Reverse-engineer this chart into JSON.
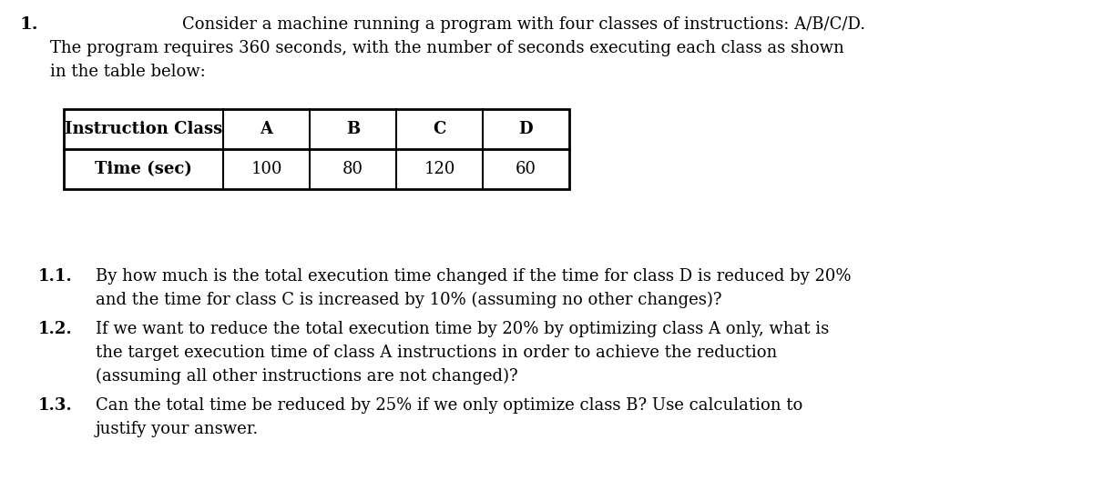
{
  "question_number": "1.",
  "intro_line1": "Consider a machine running a program with four classes of instructions: A/B/C/D.",
  "intro_line2": "The program requires 360 seconds, with the number of seconds executing each class as shown",
  "intro_line3": "in the table below:",
  "table_header": [
    "Instruction Class",
    "A",
    "B",
    "C",
    "D"
  ],
  "table_row": [
    "Time (sec)",
    "100",
    "80",
    "120",
    "60"
  ],
  "q1_label": "1.1.",
  "q1_text_line1": "By how much is the total execution time changed if the time for class D is reduced by 20%",
  "q1_text_line2": "and the time for class C is increased by 10% (assuming no other changes)?",
  "q2_label": "1.2.",
  "q2_text_line1": "If we want to reduce the total execution time by 20% by optimizing class A only, what is",
  "q2_text_line2": "the target execution time of class A instructions in order to achieve the reduction",
  "q2_text_line3": "(assuming all other instructions are not changed)?",
  "q3_label": "1.3.",
  "q3_text_line1": "Can the total time be reduced by 25% if we only optimize class B? Use calculation to",
  "q3_text_line2": "justify your answer.",
  "bg_color": "#ffffff",
  "text_color": "#000000",
  "font_family": "DejaVu Serif",
  "font_size_body": 13.0
}
